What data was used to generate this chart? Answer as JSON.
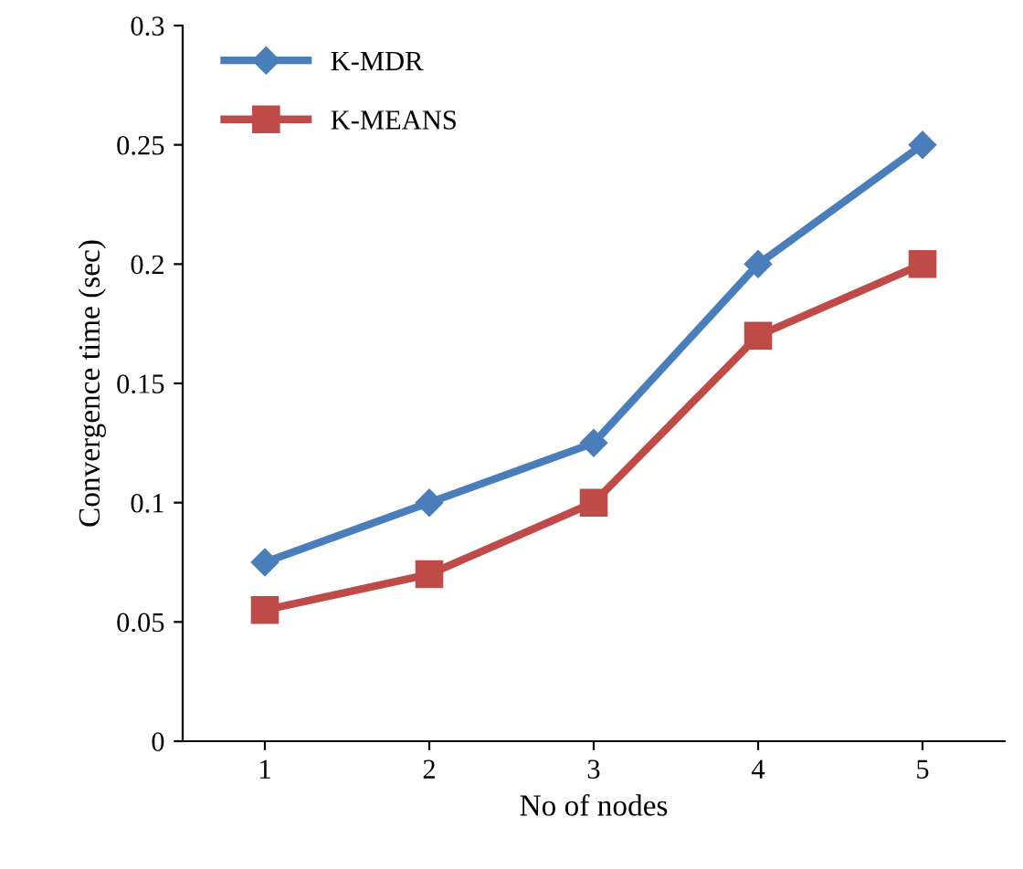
{
  "chart_data": {
    "type": "line",
    "xlabel": "No of nodes",
    "ylabel": "Convergence time (sec)",
    "categories": [
      "1",
      "2",
      "3",
      "4",
      "5"
    ],
    "series": [
      {
        "name": "K-MDR",
        "color": "#4a7ebb",
        "marker": "diamond",
        "values": [
          0.075,
          0.1,
          0.125,
          0.2,
          0.25
        ]
      },
      {
        "name": "K-MEANS",
        "color": "#be4b48",
        "marker": "square",
        "values": [
          0.055,
          0.07,
          0.1,
          0.17,
          0.2
        ]
      }
    ],
    "ylim": [
      0,
      0.3
    ],
    "yticks": [
      0,
      0.05,
      0.1,
      0.15,
      0.2,
      0.25,
      0.3
    ],
    "grid": false,
    "legend": "top left",
    "line_style": "solid"
  }
}
